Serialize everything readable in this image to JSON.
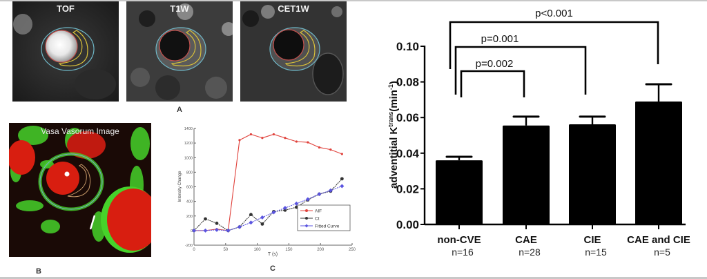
{
  "panel_a": {
    "letter": "A",
    "images": [
      {
        "label": "TOF",
        "lumen": "bright"
      },
      {
        "label": "T1W",
        "lumen": "dark"
      },
      {
        "label": "CET1W",
        "lumen": "dark"
      }
    ],
    "contour_colors": {
      "outer": "#6fb8c8",
      "lumen": "#c0504d",
      "plaque": "#d9c13a"
    }
  },
  "panel_b": {
    "letter": "B",
    "title": "Vasa Vasorum Image",
    "colors": {
      "red": "#d81e10",
      "green": "#46d22a"
    }
  },
  "panel_c": {
    "letter": "C"
  },
  "chart_data": [
    {
      "type": "line",
      "xlabel": "T (s)",
      "ylabel": "Intensity Change",
      "xlim": [
        0,
        250
      ],
      "ylim": [
        -200,
        1400
      ],
      "xticks": [
        "0",
        "50",
        "100",
        "150",
        "200",
        "250"
      ],
      "yticks": [
        "-200",
        "0",
        "200",
        "400",
        "600",
        "800",
        "1000",
        "1200",
        "1400"
      ],
      "x": [
        0,
        18,
        36,
        54,
        72,
        90,
        108,
        126,
        144,
        162,
        180,
        198,
        216,
        234
      ],
      "legend_position": "lower-right",
      "series": [
        {
          "name": "AIF",
          "color": "#e0403a",
          "marker": "dot",
          "values": [
            0,
            0,
            20,
            0,
            1240,
            1320,
            1270,
            1320,
            1270,
            1220,
            1210,
            1140,
            1110,
            1050
          ]
        },
        {
          "name": "Ct",
          "color": "#333333",
          "marker": "dot",
          "values": [
            0,
            160,
            100,
            0,
            50,
            220,
            90,
            260,
            280,
            320,
            420,
            500,
            540,
            710
          ]
        },
        {
          "name": "Fitted Curve",
          "color": "#5b55e0",
          "marker": "diamond",
          "values": [
            0,
            0,
            10,
            0,
            50,
            110,
            180,
            250,
            310,
            370,
            430,
            500,
            550,
            610
          ]
        }
      ]
    },
    {
      "type": "bar",
      "ylabel_main": "adventitial K",
      "ylabel_sup": "trans",
      "ylabel_unit": "(min",
      "ylabel_unit_sup": "-1",
      "ylabel_close": ")",
      "ylim": [
        0,
        0.1
      ],
      "yticks": [
        "0.00",
        "0.02",
        "0.04",
        "0.06",
        "0.08",
        "0.10"
      ],
      "categories": [
        "non-CVE",
        "CAE",
        "CIE",
        "CAE and CIE"
      ],
      "n_labels": [
        "n=16",
        "n=28",
        "n=15",
        "n=5"
      ],
      "values": [
        0.036,
        0.0555,
        0.0562,
        0.069
      ],
      "error_upper": [
        0.038,
        0.0605,
        0.0605,
        0.0787
      ],
      "bar_color": "#000000",
      "comparisons": [
        {
          "from": 0,
          "to": 1,
          "label": "p=0.002"
        },
        {
          "from": 0,
          "to": 2,
          "label": "p=0.001"
        },
        {
          "from": 0,
          "to": 3,
          "label": "p<0.001"
        }
      ]
    }
  ]
}
